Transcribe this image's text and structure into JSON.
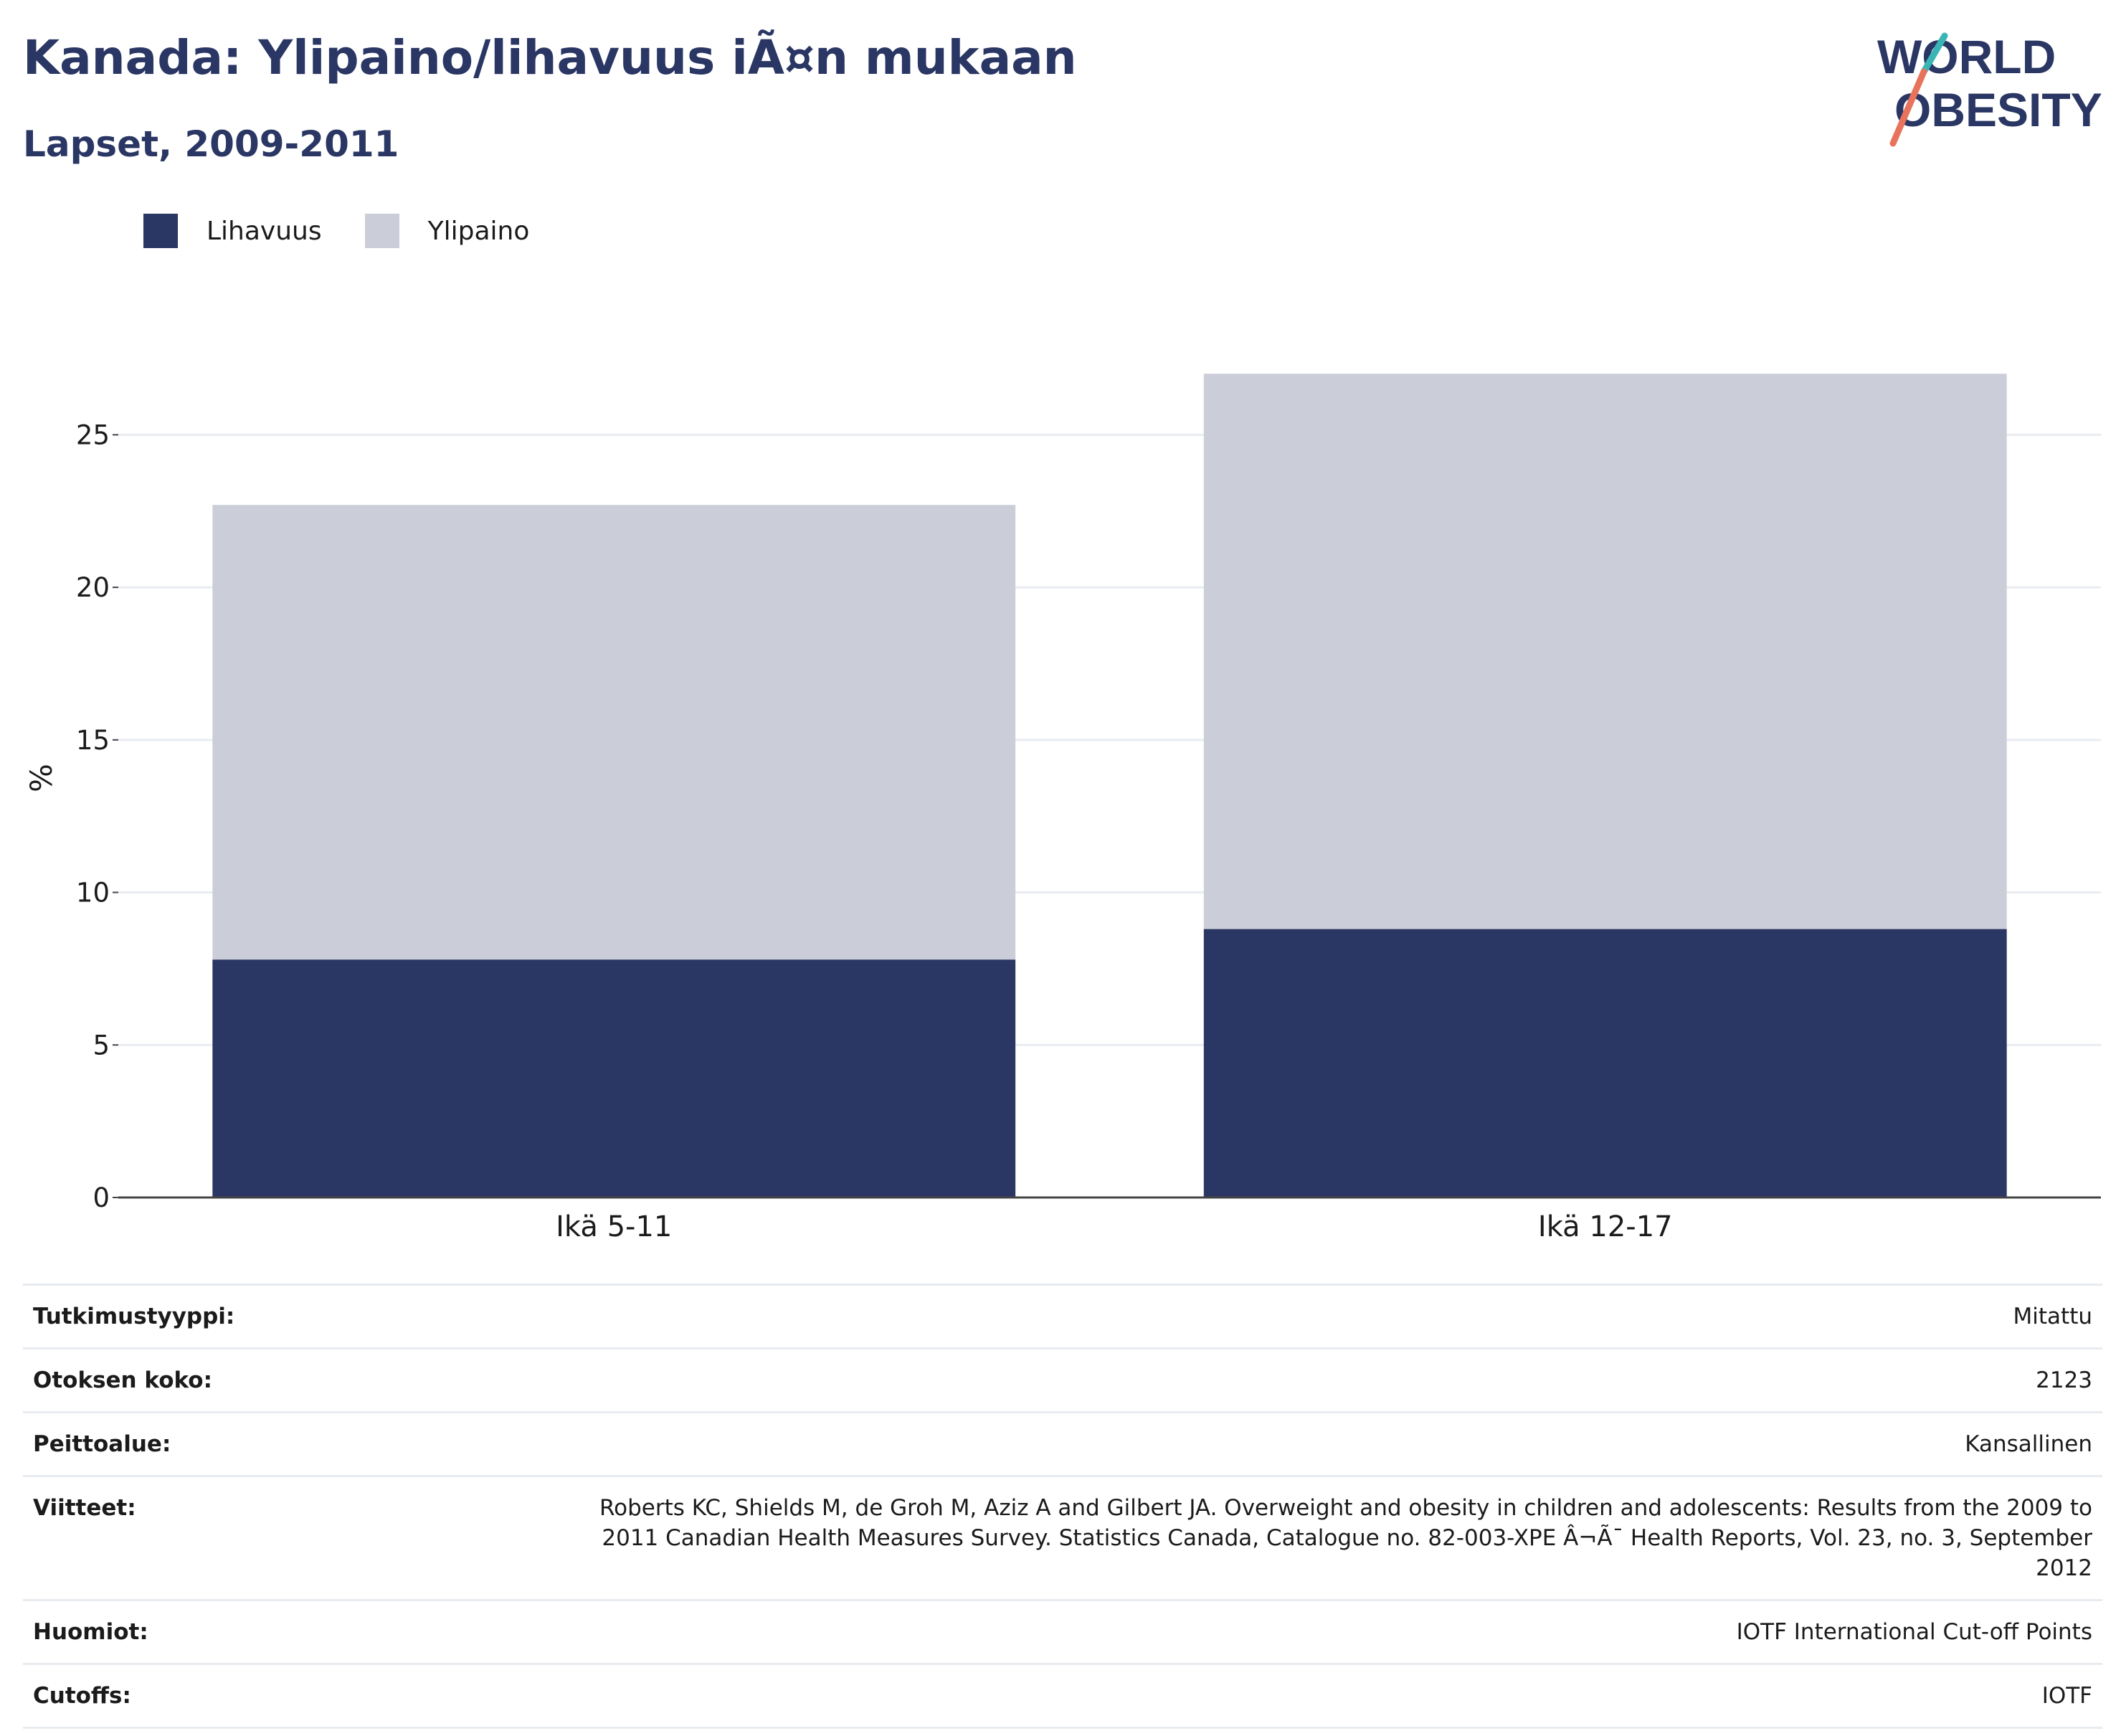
{
  "title": "Kanada: Ylipaino/lihavuus iÃ¤n mukaan",
  "subtitle": "Lapset, 2009-2011",
  "logo": {
    "line1": "WORLD",
    "line2": "OBESITY"
  },
  "colors": {
    "obesity": "#2a3663",
    "overweight": "#cbcdd8",
    "title": "#2a3663",
    "logo_teal": "#3ab5b5",
    "logo_coral": "#e8735c"
  },
  "legend": [
    {
      "label": "Lihavuus",
      "color": "#2a3663"
    },
    {
      "label": "Ylipaino",
      "color": "#cbcdd8"
    }
  ],
  "chart_data": {
    "type": "bar",
    "stacked": true,
    "categories": [
      "Ikä 5-11",
      "Ikä 12-17"
    ],
    "series": [
      {
        "name": "Lihavuus",
        "values": [
          7.8,
          8.8
        ]
      },
      {
        "name": "Ylipaino",
        "values": [
          14.9,
          18.2
        ]
      }
    ],
    "ylabel": "%",
    "xlabel": "",
    "ylim": [
      0,
      27.5
    ],
    "yticks": [
      0,
      5,
      10,
      15,
      20,
      25
    ],
    "grid": true,
    "legend_position": "top-left"
  },
  "meta": [
    {
      "key": "Tutkimustyyppi:",
      "value": "Mitattu"
    },
    {
      "key": "Otoksen koko:",
      "value": "2123"
    },
    {
      "key": "Peittoalue:",
      "value": "Kansallinen"
    },
    {
      "key": "Viitteet:",
      "value": "Roberts KC, Shields M, de Groh M, Aziz A and Gilbert JA. Overweight and obesity in children and adolescents: Results from the 2009 to 2011 Canadian Health Measures Survey. Statistics Canada, Catalogue no. 82-003-XPE Â¬Ã¯ Health Reports, Vol. 23, no. 3, September 2012"
    },
    {
      "key": "Huomiot:",
      "value": "IOTF International Cut-off Points"
    },
    {
      "key": "Cutoffs:",
      "value": "IOTF"
    }
  ]
}
